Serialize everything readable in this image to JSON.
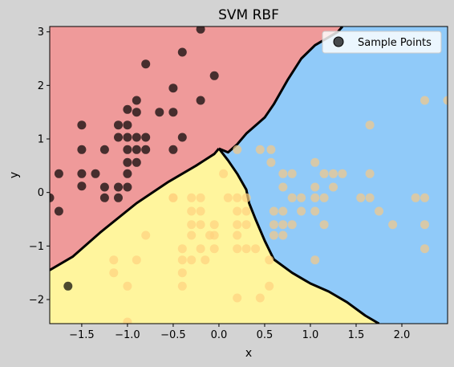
{
  "chart_data": {
    "type": "scatter",
    "title": "SVM RBF",
    "xlabel": "x",
    "ylabel": "y",
    "xlim": [
      -1.85,
      2.5
    ],
    "ylim": [
      -2.45,
      3.1
    ],
    "xticks": [
      -1.5,
      -1.0,
      -0.5,
      0.0,
      0.5,
      1.0,
      1.5,
      2.0
    ],
    "xtick_labels": [
      "−1.5",
      "−1.0",
      "−0.5",
      "0.0",
      "0.5",
      "1.0",
      "1.5",
      "2.0"
    ],
    "yticks": [
      -2,
      -1,
      0,
      1,
      2,
      3
    ],
    "ytick_labels": [
      "−2",
      "−1",
      "0",
      "1",
      "2",
      "3"
    ],
    "legend": {
      "label": "Sample Points",
      "position": "top-right"
    },
    "grid": false,
    "regions": [
      {
        "class": "red",
        "color": "#ef9a9a"
      },
      {
        "class": "blue",
        "color": "#90caf9"
      },
      {
        "class": "yellow",
        "color": "#fff59d"
      }
    ],
    "decision_boundaries": [
      {
        "name": "red-yellow",
        "points": [
          [
            -1.85,
            -1.45
          ],
          [
            -1.6,
            -1.2
          ],
          [
            -1.3,
            -0.75
          ],
          [
            -0.9,
            -0.2
          ],
          [
            -0.55,
            0.2
          ],
          [
            -0.25,
            0.5
          ],
          [
            -0.05,
            0.72
          ],
          [
            0.0,
            0.82
          ]
        ]
      },
      {
        "name": "red-blue",
        "points": [
          [
            0.0,
            0.82
          ],
          [
            0.1,
            0.75
          ],
          [
            0.2,
            0.9
          ],
          [
            0.3,
            1.1
          ],
          [
            0.4,
            1.25
          ],
          [
            0.5,
            1.4
          ],
          [
            0.6,
            1.65
          ],
          [
            0.75,
            2.1
          ],
          [
            0.9,
            2.5
          ],
          [
            1.05,
            2.75
          ],
          [
            1.3,
            3.0
          ],
          [
            1.35,
            3.1
          ]
        ]
      },
      {
        "name": "yellow-blue",
        "points": [
          [
            0.0,
            0.82
          ],
          [
            0.1,
            0.6
          ],
          [
            0.2,
            0.35
          ],
          [
            0.3,
            0.05
          ],
          [
            0.33,
            -0.2
          ],
          [
            0.4,
            -0.5
          ],
          [
            0.5,
            -0.9
          ],
          [
            0.6,
            -1.25
          ],
          [
            0.8,
            -1.5
          ],
          [
            1.0,
            -1.7
          ],
          [
            1.2,
            -1.85
          ],
          [
            1.4,
            -2.05
          ],
          [
            1.6,
            -2.3
          ],
          [
            1.75,
            -2.45
          ]
        ]
      }
    ],
    "series": [
      {
        "color": "#000000",
        "points": [
          [
            -0.2,
            3.05
          ],
          [
            -0.4,
            2.62
          ],
          [
            -0.8,
            2.4
          ],
          [
            -0.05,
            2.18
          ],
          [
            -0.5,
            1.95
          ],
          [
            -0.9,
            1.72
          ],
          [
            -0.2,
            1.72
          ],
          [
            -1.0,
            1.55
          ],
          [
            -0.9,
            1.5
          ],
          [
            -0.65,
            1.5
          ],
          [
            -0.5,
            1.5
          ],
          [
            -1.5,
            1.26
          ],
          [
            -1.1,
            1.26
          ],
          [
            -1.0,
            1.26
          ],
          [
            -1.0,
            1.03
          ],
          [
            -0.9,
            1.03
          ],
          [
            -0.8,
            1.03
          ],
          [
            -0.4,
            1.03
          ],
          [
            -1.1,
            1.03
          ],
          [
            -1.5,
            0.8
          ],
          [
            -1.25,
            0.8
          ],
          [
            -1.0,
            0.8
          ],
          [
            -0.9,
            0.8
          ],
          [
            -0.8,
            0.8
          ],
          [
            -0.5,
            0.8
          ],
          [
            -1.0,
            0.56
          ],
          [
            -0.9,
            0.56
          ],
          [
            -1.0,
            0.35
          ],
          [
            -1.75,
            0.35
          ],
          [
            -1.5,
            0.35
          ],
          [
            -1.35,
            0.35
          ],
          [
            -1.5,
            0.12
          ],
          [
            -1.25,
            0.1
          ],
          [
            -1.1,
            0.1
          ],
          [
            -1.0,
            0.1
          ],
          [
            -1.85,
            -0.1
          ],
          [
            -1.25,
            -0.1
          ],
          [
            -1.1,
            -0.1
          ],
          [
            -1.75,
            -0.35
          ],
          [
            -1.65,
            -1.75
          ]
        ]
      },
      {
        "color": "#ffd27f",
        "points": [
          [
            -0.8,
            -0.8
          ],
          [
            -0.5,
            -0.1
          ],
          [
            -0.3,
            -0.1
          ],
          [
            -0.2,
            -0.1
          ],
          [
            0.1,
            -0.1
          ],
          [
            0.2,
            -0.1
          ],
          [
            0.3,
            -0.1
          ],
          [
            -0.3,
            -0.35
          ],
          [
            -0.2,
            -0.35
          ],
          [
            0.2,
            -0.35
          ],
          [
            0.3,
            -0.35
          ],
          [
            -0.3,
            -0.6
          ],
          [
            -0.2,
            -0.6
          ],
          [
            -0.05,
            -0.6
          ],
          [
            0.2,
            -0.6
          ],
          [
            0.3,
            -0.6
          ],
          [
            -0.3,
            -0.8
          ],
          [
            -0.1,
            -0.8
          ],
          [
            0.2,
            -0.8
          ],
          [
            -0.4,
            -1.05
          ],
          [
            -0.2,
            -1.05
          ],
          [
            -0.05,
            -1.05
          ],
          [
            0.3,
            -1.05
          ],
          [
            -0.9,
            -1.26
          ],
          [
            -1.15,
            -1.26
          ],
          [
            -0.4,
            -1.26
          ],
          [
            -0.3,
            -1.26
          ],
          [
            -0.15,
            -1.26
          ],
          [
            -1.15,
            -1.5
          ],
          [
            -0.4,
            -1.5
          ],
          [
            -1.0,
            -1.75
          ],
          [
            -0.4,
            -1.75
          ],
          [
            0.2,
            -1.97
          ],
          [
            0.45,
            -1.97
          ],
          [
            -1.0,
            -2.42
          ],
          [
            0.05,
            0.35
          ],
          [
            -0.5,
            -0.1
          ],
          [
            -0.05,
            -0.8
          ],
          [
            0.2,
            -1.05
          ],
          [
            0.4,
            -1.05
          ],
          [
            0.55,
            -1.26
          ],
          [
            0.55,
            -1.75
          ]
        ]
      },
      {
        "color": "#f5c987",
        "points": [
          [
            0.2,
            0.8
          ],
          [
            0.45,
            0.8
          ],
          [
            0.57,
            0.8
          ],
          [
            0.57,
            0.56
          ],
          [
            0.7,
            0.35
          ],
          [
            0.8,
            0.35
          ],
          [
            1.05,
            0.56
          ],
          [
            1.15,
            0.35
          ],
          [
            1.25,
            0.35
          ],
          [
            1.35,
            0.35
          ],
          [
            1.65,
            0.35
          ],
          [
            0.7,
            0.1
          ],
          [
            1.05,
            0.1
          ],
          [
            1.25,
            0.1
          ],
          [
            0.6,
            -0.35
          ],
          [
            0.8,
            -0.1
          ],
          [
            0.9,
            -0.1
          ],
          [
            1.05,
            -0.1
          ],
          [
            1.15,
            -0.1
          ],
          [
            1.55,
            -0.1
          ],
          [
            1.65,
            -0.1
          ],
          [
            2.15,
            -0.1
          ],
          [
            2.25,
            -0.1
          ],
          [
            0.6,
            -0.6
          ],
          [
            0.7,
            -0.6
          ],
          [
            0.8,
            -0.6
          ],
          [
            0.9,
            -0.35
          ],
          [
            1.05,
            -0.35
          ],
          [
            1.15,
            -0.6
          ],
          [
            1.75,
            -0.35
          ],
          [
            1.9,
            -0.6
          ],
          [
            2.25,
            -0.6
          ],
          [
            0.6,
            -0.8
          ],
          [
            0.7,
            -0.8
          ],
          [
            1.05,
            -1.26
          ],
          [
            2.25,
            -1.05
          ],
          [
            1.65,
            1.26
          ],
          [
            2.25,
            1.72
          ],
          [
            2.5,
            1.72
          ],
          [
            0.7,
            -0.35
          ]
        ]
      }
    ]
  }
}
